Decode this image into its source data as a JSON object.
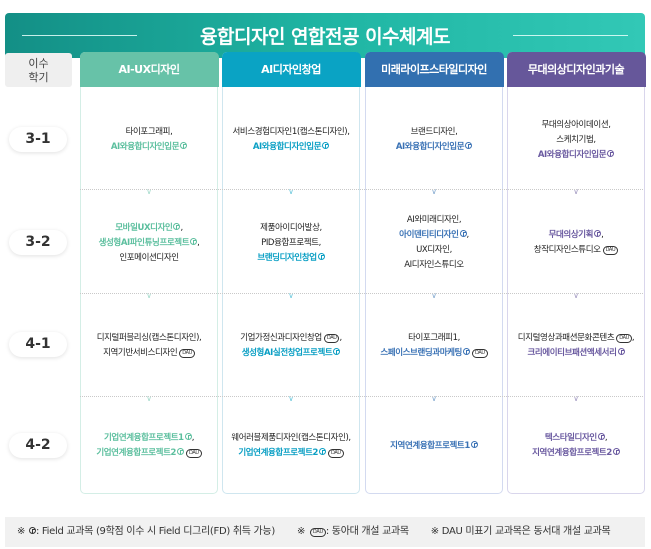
{
  "title": "융합디자인 연합전공 이수체계도",
  "semester_header": [
    "이수",
    "학기"
  ],
  "semesters": [
    "3-1",
    "3-2",
    "4-1",
    "4-2"
  ],
  "badge_text": "DAU",
  "columns": [
    {
      "label": "AI-UX디자인",
      "color": "#67c2a8",
      "accent": "#5cbf9e",
      "border": "#d4eee6",
      "cells": [
        [
          {
            "t": "타이포그래피,"
          },
          {
            "t": "AI와융합디자인입문",
            "a": 1,
            "f": 1
          }
        ],
        [
          {
            "t": "모바일UX디자인",
            "a": 1,
            "f": 1,
            "s": ","
          },
          {
            "t": "생성형AI파인튜닝프로젝트",
            "a": 1,
            "f": 1,
            "s": ","
          },
          {
            "t": "인포메이션디자인"
          }
        ],
        [
          {
            "t": "디지털퍼블리싱(캡스톤디자인),"
          },
          {
            "t": "지역기반서비스디자인",
            "d": 1
          }
        ],
        [
          {
            "t": "기업연계융합프로젝트1",
            "a": 1,
            "f": 1,
            "s": ","
          },
          {
            "t": "기업연계융합프로젝트2",
            "a": 1,
            "f": 1,
            "d": 1
          }
        ]
      ]
    },
    {
      "label": "AI디자인창업",
      "color": "#0aa3c4",
      "accent": "#0a9fc4",
      "border": "#cfe6ef",
      "cells": [
        [
          {
            "t": "서비스경험디자인1(캡스톤디자인),"
          },
          {
            "t": "AI와융합디자인입문",
            "a": 1,
            "f": 1
          }
        ],
        [
          {
            "t": "제품아이디어발상,"
          },
          {
            "t": "PID융합프로젝트,"
          },
          {
            "t": "브랜딩디자인창업",
            "a": 1,
            "f": 1
          }
        ],
        [
          {
            "t": "기업가정신과디자인창업",
            "d": 1,
            "s": ","
          },
          {
            "t": "생성형AI실전창업프로젝트",
            "a": 1,
            "f": 1
          }
        ],
        [
          {
            "t": "웨어러블제품디자인(캡스톤디자인),"
          },
          {
            "t": "기업연계융합프로젝트2",
            "a": 1,
            "f": 1,
            "d": 1
          }
        ]
      ]
    },
    {
      "label": "미래라이프스타일디자인",
      "color": "#3270b0",
      "accent": "#3a72b5",
      "border": "#d3daf0",
      "cells": [
        [
          {
            "t": "브랜드디자인,"
          },
          {
            "t": "AI와융합디자인입문",
            "a": 1,
            "f": 1
          }
        ],
        [
          {
            "t": "AI와미래디자인,"
          },
          {
            "t": "아이덴티티디자인",
            "a": 1,
            "f": 1,
            "s": ","
          },
          {
            "t": "UX디자인,"
          },
          {
            "t": "AI디자인스튜디오"
          }
        ],
        [
          {
            "t": "타이포그래피1,"
          },
          {
            "t": "스페이스브랜딩과마케팅",
            "a": 1,
            "f": 1,
            "d": 1
          }
        ],
        [
          {
            "t": "지역연계융합프로젝트1",
            "a": 1,
            "f": 1
          }
        ]
      ]
    },
    {
      "label": "무대의상디자인과기술",
      "color": "#66579a",
      "accent": "#6a5aa0",
      "border": "#d9d6ec",
      "cells": [
        [
          {
            "t": "무대의상아이데이션,"
          },
          {
            "t": "스케치기법,"
          },
          {
            "t": "AI와융합디자인입문",
            "a": 1,
            "f": 1
          }
        ],
        [
          {
            "t": "무대의상기획",
            "a": 1,
            "f": 1,
            "s": ","
          },
          {
            "t": "창작디자인스튜디오",
            "d": 1
          }
        ],
        [
          {
            "t": "디지털영상과패션문화콘텐츠",
            "d": 1,
            "s": ","
          },
          {
            "t": "크리에이티브패션액세서리",
            "a": 1,
            "f": 1
          }
        ],
        [
          {
            "t": "텍스타일디자인",
            "a": 1,
            "f": 1,
            "s": ","
          },
          {
            "t": "지역연계융합프로젝트2",
            "a": 1,
            "f": 1
          }
        ]
      ]
    }
  ],
  "footer": {
    "note1": "※ ",
    "note1_text": ": Field 교과목 (9학점 이수 시 Field 디그리(FD) 취득 가능)",
    "note2": "※ ",
    "note2_text": ": 동아대 개설 교과목",
    "note3": "※ DAU 미표기 교과목은  동서대 개설 교과목"
  }
}
